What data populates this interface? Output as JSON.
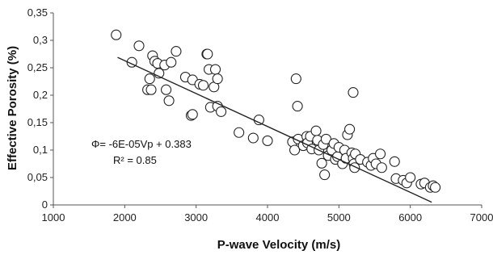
{
  "chart_data": {
    "type": "scatter",
    "xlabel": "P-wave Velocity (m/s)",
    "ylabel": "Effective Porosity (%)",
    "xlim": [
      1000,
      7000
    ],
    "ylim": [
      0,
      0.35
    ],
    "x_ticks": [
      "1000",
      "2000",
      "3000",
      "4000",
      "5000",
      "6000",
      "7000"
    ],
    "y_ticks": [
      "0",
      "0,05",
      "0,1",
      "0,15",
      "0,2",
      "0,25",
      "0,3",
      "0,35"
    ],
    "grid": false,
    "legend": "none",
    "marker_color": "#222222",
    "trendline": {
      "equation": "Φ= -6E-05Vp + 0.383",
      "r_squared": "R² = 0.85",
      "slope": -6e-05,
      "intercept": 0.383,
      "x_range": [
        1900,
        6300
      ]
    },
    "points": [
      {
        "x": 1880,
        "y": 0.31
      },
      {
        "x": 2100,
        "y": 0.26
      },
      {
        "x": 2200,
        "y": 0.29
      },
      {
        "x": 2320,
        "y": 0.21
      },
      {
        "x": 2350,
        "y": 0.23
      },
      {
        "x": 2370,
        "y": 0.21
      },
      {
        "x": 2390,
        "y": 0.272
      },
      {
        "x": 2420,
        "y": 0.262
      },
      {
        "x": 2460,
        "y": 0.258
      },
      {
        "x": 2480,
        "y": 0.24
      },
      {
        "x": 2560,
        "y": 0.255
      },
      {
        "x": 2580,
        "y": 0.21
      },
      {
        "x": 2620,
        "y": 0.19
      },
      {
        "x": 2650,
        "y": 0.26
      },
      {
        "x": 2720,
        "y": 0.28
      },
      {
        "x": 2850,
        "y": 0.233
      },
      {
        "x": 2950,
        "y": 0.228
      },
      {
        "x": 2930,
        "y": 0.163
      },
      {
        "x": 2950,
        "y": 0.165
      },
      {
        "x": 3050,
        "y": 0.22
      },
      {
        "x": 3100,
        "y": 0.218
      },
      {
        "x": 3150,
        "y": 0.275
      },
      {
        "x": 3160,
        "y": 0.275
      },
      {
        "x": 3180,
        "y": 0.247
      },
      {
        "x": 3200,
        "y": 0.178
      },
      {
        "x": 3250,
        "y": 0.215
      },
      {
        "x": 3270,
        "y": 0.247
      },
      {
        "x": 3300,
        "y": 0.23
      },
      {
        "x": 3300,
        "y": 0.18
      },
      {
        "x": 3350,
        "y": 0.17
      },
      {
        "x": 3600,
        "y": 0.132
      },
      {
        "x": 3800,
        "y": 0.122
      },
      {
        "x": 3880,
        "y": 0.155
      },
      {
        "x": 4000,
        "y": 0.117
      },
      {
        "x": 4350,
        "y": 0.115
      },
      {
        "x": 4380,
        "y": 0.1
      },
      {
        "x": 4400,
        "y": 0.23
      },
      {
        "x": 4420,
        "y": 0.18
      },
      {
        "x": 4430,
        "y": 0.12
      },
      {
        "x": 4500,
        "y": 0.108
      },
      {
        "x": 4550,
        "y": 0.125
      },
      {
        "x": 4560,
        "y": 0.113
      },
      {
        "x": 4600,
        "y": 0.125
      },
      {
        "x": 4620,
        "y": 0.102
      },
      {
        "x": 4680,
        "y": 0.135
      },
      {
        "x": 4700,
        "y": 0.118
      },
      {
        "x": 4720,
        "y": 0.1
      },
      {
        "x": 4760,
        "y": 0.076
      },
      {
        "x": 4780,
        "y": 0.11
      },
      {
        "x": 4800,
        "y": 0.055
      },
      {
        "x": 4820,
        "y": 0.12
      },
      {
        "x": 4850,
        "y": 0.09
      },
      {
        "x": 4900,
        "y": 0.1
      },
      {
        "x": 4930,
        "y": 0.112
      },
      {
        "x": 4950,
        "y": 0.083
      },
      {
        "x": 4980,
        "y": 0.088
      },
      {
        "x": 5000,
        "y": 0.105
      },
      {
        "x": 5050,
        "y": 0.075
      },
      {
        "x": 5080,
        "y": 0.1
      },
      {
        "x": 5100,
        "y": 0.085
      },
      {
        "x": 5120,
        "y": 0.128
      },
      {
        "x": 5150,
        "y": 0.138
      },
      {
        "x": 5180,
        "y": 0.095
      },
      {
        "x": 5200,
        "y": 0.205
      },
      {
        "x": 5200,
        "y": 0.085
      },
      {
        "x": 5210,
        "y": 0.075
      },
      {
        "x": 5220,
        "y": 0.068
      },
      {
        "x": 5230,
        "y": 0.093
      },
      {
        "x": 5300,
        "y": 0.083
      },
      {
        "x": 5400,
        "y": 0.078
      },
      {
        "x": 5450,
        "y": 0.072
      },
      {
        "x": 5480,
        "y": 0.085
      },
      {
        "x": 5520,
        "y": 0.075
      },
      {
        "x": 5580,
        "y": 0.093
      },
      {
        "x": 5600,
        "y": 0.068
      },
      {
        "x": 5780,
        "y": 0.079
      },
      {
        "x": 5800,
        "y": 0.048
      },
      {
        "x": 5900,
        "y": 0.045
      },
      {
        "x": 5950,
        "y": 0.04
      },
      {
        "x": 6000,
        "y": 0.05
      },
      {
        "x": 6150,
        "y": 0.038
      },
      {
        "x": 6200,
        "y": 0.04
      },
      {
        "x": 6280,
        "y": 0.032
      },
      {
        "x": 6320,
        "y": 0.035
      },
      {
        "x": 6350,
        "y": 0.032
      }
    ]
  }
}
